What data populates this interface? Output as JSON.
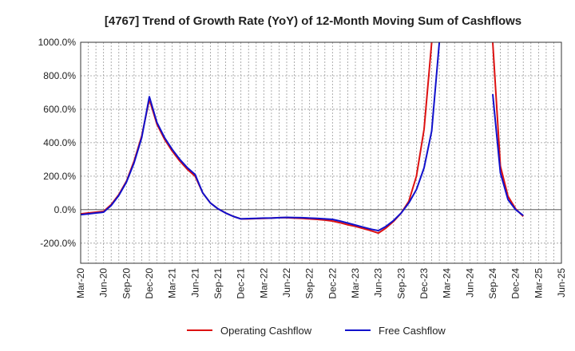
{
  "chart_data": {
    "type": "line",
    "title": "[4767]  Trend of Growth Rate (YoY) of 12-Month Moving Sum of Cashflows",
    "xlabel": "",
    "ylabel": "",
    "ylim": [
      -320,
      1000
    ],
    "y_ticks": [
      1000,
      800,
      600,
      400,
      200,
      0,
      -200
    ],
    "y_tick_labels": [
      "1000.0%",
      "800.0%",
      "600.0%",
      "400.0%",
      "200.0%",
      "0.0%",
      "-200.0%"
    ],
    "x_tick_labels": [
      "Mar-20",
      "Jun-20",
      "Sep-20",
      "Dec-20",
      "Mar-21",
      "Jun-21",
      "Sep-21",
      "Dec-21",
      "Mar-22",
      "Jun-22",
      "Sep-22",
      "Dec-22",
      "Mar-23",
      "Jun-23",
      "Sep-23",
      "Dec-23",
      "Mar-24",
      "Jun-24",
      "Sep-24",
      "Dec-24",
      "Mar-25",
      "Jun-25"
    ],
    "x_months": [
      "Mar-20",
      "Apr-20",
      "May-20",
      "Jun-20",
      "Jul-20",
      "Aug-20",
      "Sep-20",
      "Oct-20",
      "Nov-20",
      "Dec-20",
      "Jan-21",
      "Feb-21",
      "Mar-21",
      "Apr-21",
      "May-21",
      "Jun-21",
      "Jul-21",
      "Aug-21",
      "Sep-21",
      "Oct-21",
      "Nov-21",
      "Dec-21",
      "Jan-22",
      "Feb-22",
      "Mar-22",
      "Apr-22",
      "May-22",
      "Jun-22",
      "Jul-22",
      "Aug-22",
      "Sep-22",
      "Oct-22",
      "Nov-22",
      "Dec-22",
      "Jan-23",
      "Feb-23",
      "Mar-23",
      "Apr-23",
      "May-23",
      "Jun-23",
      "Jul-23",
      "Aug-23",
      "Sep-23",
      "Oct-23",
      "Nov-23",
      "Dec-23",
      "Jan-24",
      "Feb-24",
      "Mar-24",
      "Apr-24",
      "May-24",
      "Jun-24",
      "Jul-24",
      "Aug-24",
      "Sep-24",
      "Oct-24",
      "Nov-24",
      "Dec-24",
      "Jan-25",
      "Feb-25",
      "Mar-25",
      "Apr-25",
      "May-25",
      "Jun-25"
    ],
    "grid": true,
    "legend_position": "bottom",
    "series": [
      {
        "name": "Operating Cashflow",
        "color": "#dd1111",
        "values": [
          -25,
          -20,
          -15,
          -10,
          30,
          90,
          170,
          290,
          440,
          660,
          510,
          420,
          350,
          290,
          240,
          200,
          100,
          40,
          5,
          -20,
          -40,
          -55,
          -55,
          -53,
          -52,
          -50,
          -48,
          -48,
          -50,
          -52,
          -55,
          -58,
          -62,
          -68,
          -78,
          -90,
          -100,
          -112,
          -125,
          -140,
          -110,
          -70,
          -20,
          50,
          200,
          480,
          1000,
          null,
          null,
          null,
          null,
          null,
          null,
          null,
          1000,
          260,
          80,
          5,
          -40,
          null,
          null,
          null,
          null,
          null
        ]
      },
      {
        "name": "Free Cashflow",
        "color": "#1111cc",
        "values": [
          -30,
          -25,
          -20,
          -15,
          25,
          85,
          165,
          280,
          430,
          675,
          520,
          430,
          360,
          300,
          250,
          210,
          100,
          40,
          5,
          -20,
          -40,
          -55,
          -53,
          -52,
          -50,
          -50,
          -48,
          -46,
          -47,
          -48,
          -50,
          -52,
          -55,
          -58,
          -68,
          -80,
          -92,
          -104,
          -116,
          -125,
          -100,
          -65,
          -20,
          40,
          120,
          250,
          470,
          1000,
          null,
          null,
          null,
          null,
          null,
          null,
          690,
          220,
          60,
          0,
          -35,
          null,
          null,
          null,
          null,
          null
        ]
      }
    ]
  }
}
